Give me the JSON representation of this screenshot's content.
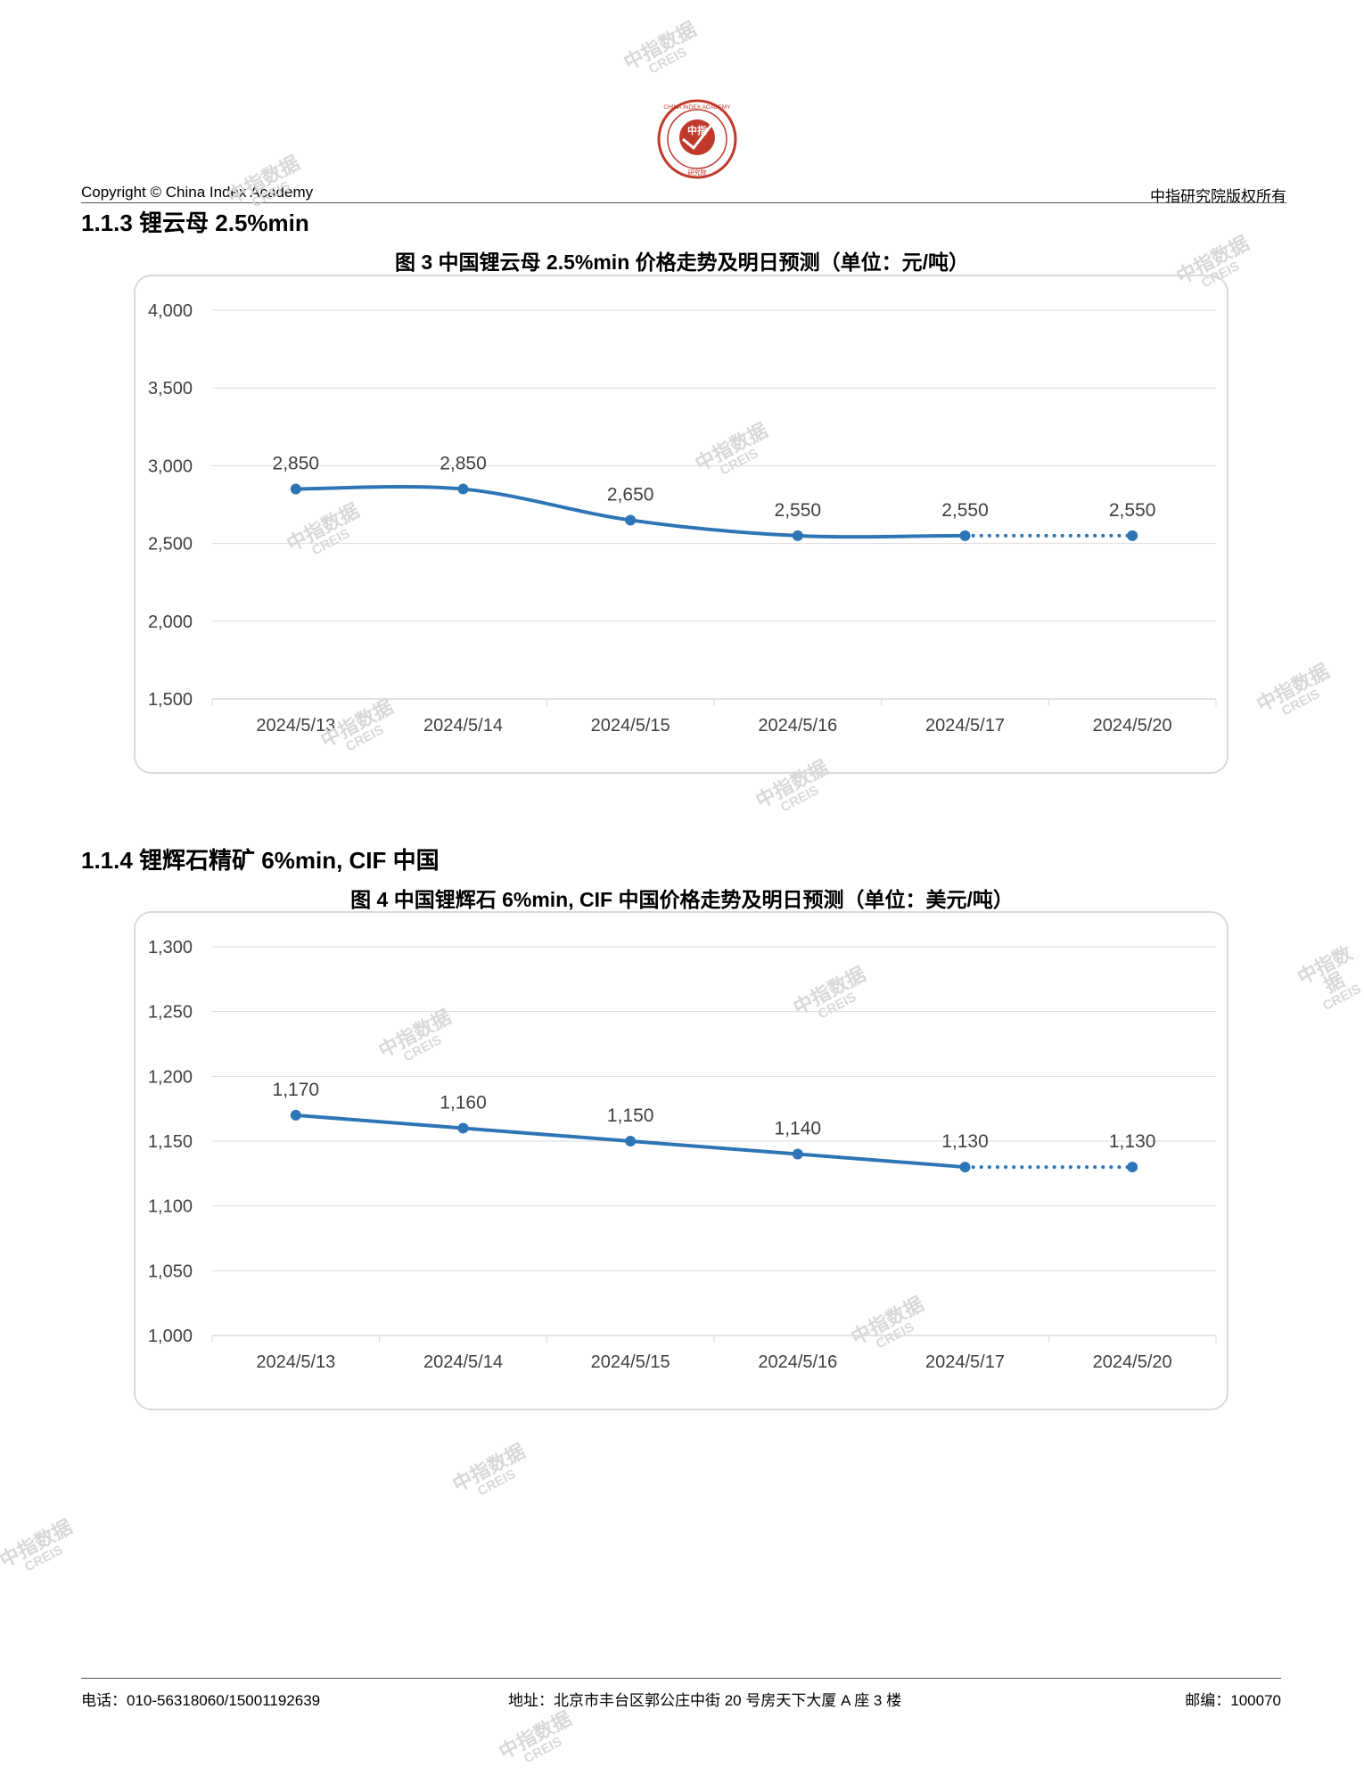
{
  "header": {
    "logo_text": "CHINA INDEX ACADEMY",
    "logo_center": "中指",
    "logo_bottom": "研究院",
    "copyright": "Copyright © China Index Academy",
    "rights": "中指研究院版权所有"
  },
  "sections": [
    {
      "heading": "1.1.3 锂云母 2.5%min"
    },
    {
      "heading": "1.1.4 锂辉石精矿 6%min, CIF 中国"
    }
  ],
  "watermark": {
    "cn": "中指数据",
    "en": "CREIS"
  },
  "colors": {
    "series": "#2e75b6",
    "grid": "#d9d9d9",
    "watermark": "#d8d8d8"
  },
  "chart_data": [
    {
      "type": "line",
      "title": "图 3 中国锂云母 2.5%min 价格走势及明日预测（单位：元/吨）",
      "categories": [
        "2024/5/13",
        "2024/5/14",
        "2024/5/15",
        "2024/5/16",
        "2024/5/17",
        "2024/5/20"
      ],
      "series": [
        {
          "values": [
            2850,
            2850,
            2650,
            2550,
            2550,
            2550
          ]
        }
      ],
      "data_labels": [
        "2,850",
        "2,850",
        "2,650",
        "2,550",
        "2,550",
        "2,550"
      ],
      "forecast_segment": "2024/5/17 to 2024/5/20 (dotted)",
      "ylim": [
        1500,
        4000
      ],
      "yticks": [
        4000,
        3500,
        3000,
        2500,
        2000,
        1500
      ],
      "ytick_labels": [
        "4,000",
        "3,500",
        "3,000",
        "2,500",
        "2,000",
        "1,500"
      ],
      "smooth": true,
      "grid": true,
      "legend": "none"
    },
    {
      "type": "line",
      "title": "图 4 中国锂辉石 6%min, CIF 中国价格走势及明日预测（单位：美元/吨）",
      "categories": [
        "2024/5/13",
        "2024/5/14",
        "2024/5/15",
        "2024/5/16",
        "2024/5/17",
        "2024/5/20"
      ],
      "series": [
        {
          "values": [
            1170,
            1160,
            1150,
            1140,
            1130,
            1130
          ]
        }
      ],
      "data_labels": [
        "1,170",
        "1,160",
        "1,150",
        "1,140",
        "1,130",
        "1,130"
      ],
      "forecast_segment": "2024/5/17 to 2024/5/20 (dotted)",
      "ylim": [
        1000,
        1300
      ],
      "yticks": [
        1300,
        1250,
        1200,
        1150,
        1100,
        1050,
        1000
      ],
      "ytick_labels": [
        "1,300",
        "1,250",
        "1,200",
        "1,150",
        "1,100",
        "1,050",
        "1,000"
      ],
      "smooth": false,
      "grid": true,
      "legend": "none"
    }
  ],
  "footer": {
    "phone": "电话：010-56318060/15001192639",
    "address": "地址：北京市丰台区郭公庄中街 20 号房天下大厦 A 座 3 楼",
    "postcode": "邮编：100070"
  }
}
